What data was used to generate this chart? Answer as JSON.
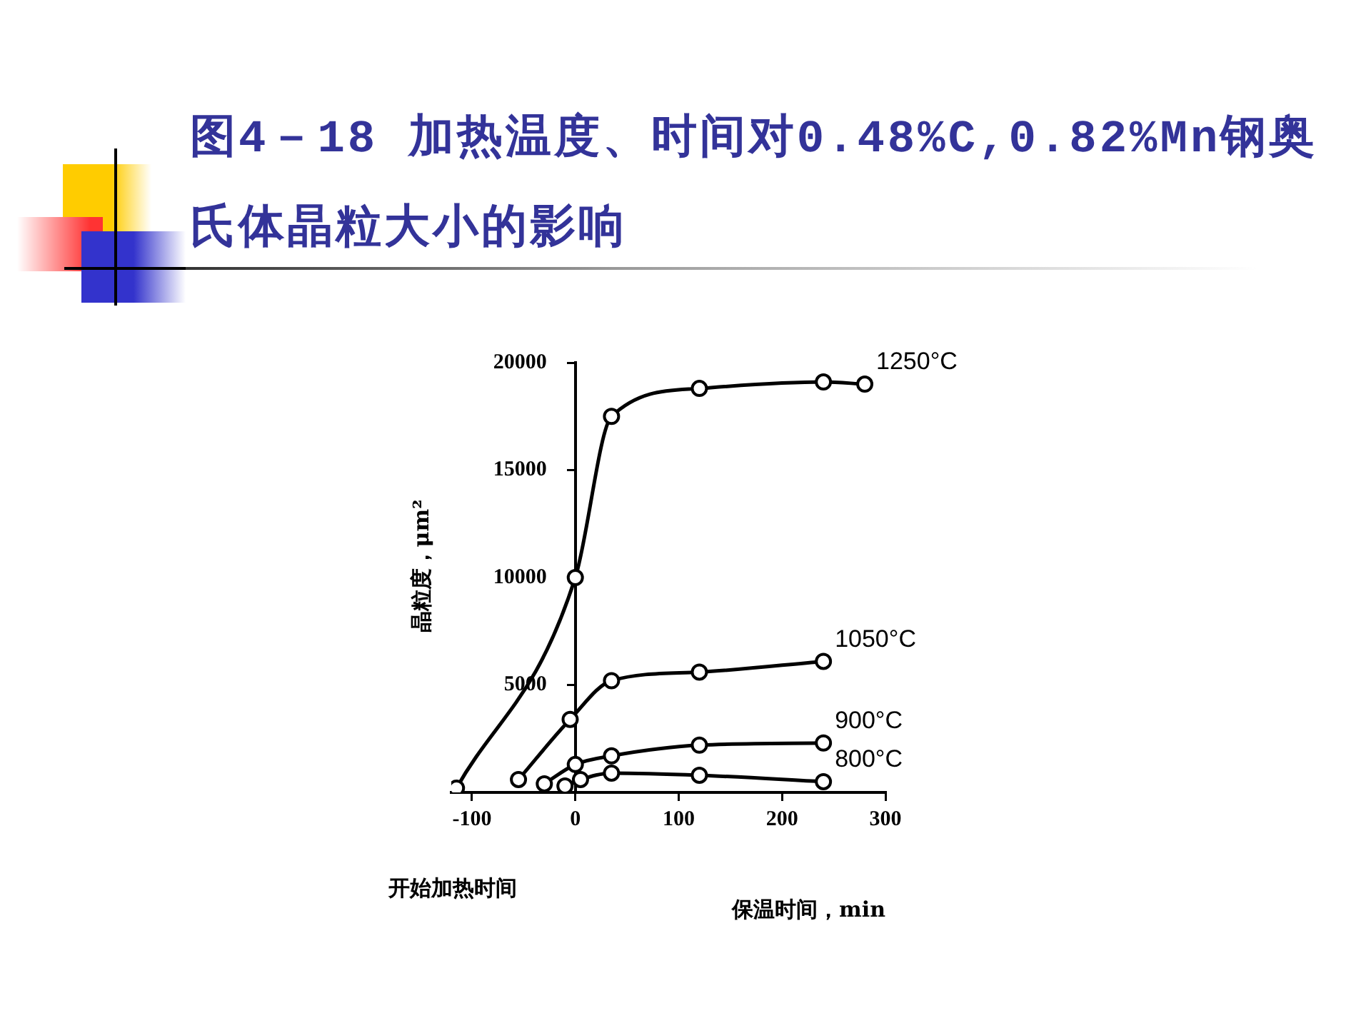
{
  "chart_data": {
    "type": "line",
    "title": "图4－18 加热温度、时间对0.48%C,0.82%Mn钢奥氏体晶粒大小的影响",
    "xlabel": "保温时间，min",
    "ylabel": "晶粒度，μm²",
    "annotations": [
      "开始加热时间"
    ],
    "xlim": [
      -120,
      300
    ],
    "xticks": [
      -100,
      0,
      100,
      200,
      300
    ],
    "ylim": [
      0,
      20000
    ],
    "yticks": [
      5000,
      10000,
      15000,
      20000
    ],
    "grid": false,
    "legend": false,
    "marker": "circle",
    "line_style": "solid",
    "series": [
      {
        "name": "1250°C",
        "color": "#000000",
        "x": [
          -115,
          0,
          35,
          120,
          240,
          280
        ],
        "values": [
          200,
          10000,
          17500,
          18800,
          19100,
          19000
        ]
      },
      {
        "name": "1050°C",
        "color": "#000000",
        "x": [
          -55,
          -5,
          35,
          120,
          240
        ],
        "values": [
          600,
          3400,
          5200,
          5600,
          6100
        ]
      },
      {
        "name": "900°C",
        "color": "#000000",
        "x": [
          -30,
          0,
          35,
          120,
          240
        ],
        "values": [
          400,
          1300,
          1700,
          2200,
          2300
        ]
      },
      {
        "name": "800°C",
        "color": "#000000",
        "x": [
          -10,
          5,
          35,
          120,
          240
        ],
        "values": [
          300,
          600,
          900,
          800,
          500
        ]
      }
    ]
  }
}
